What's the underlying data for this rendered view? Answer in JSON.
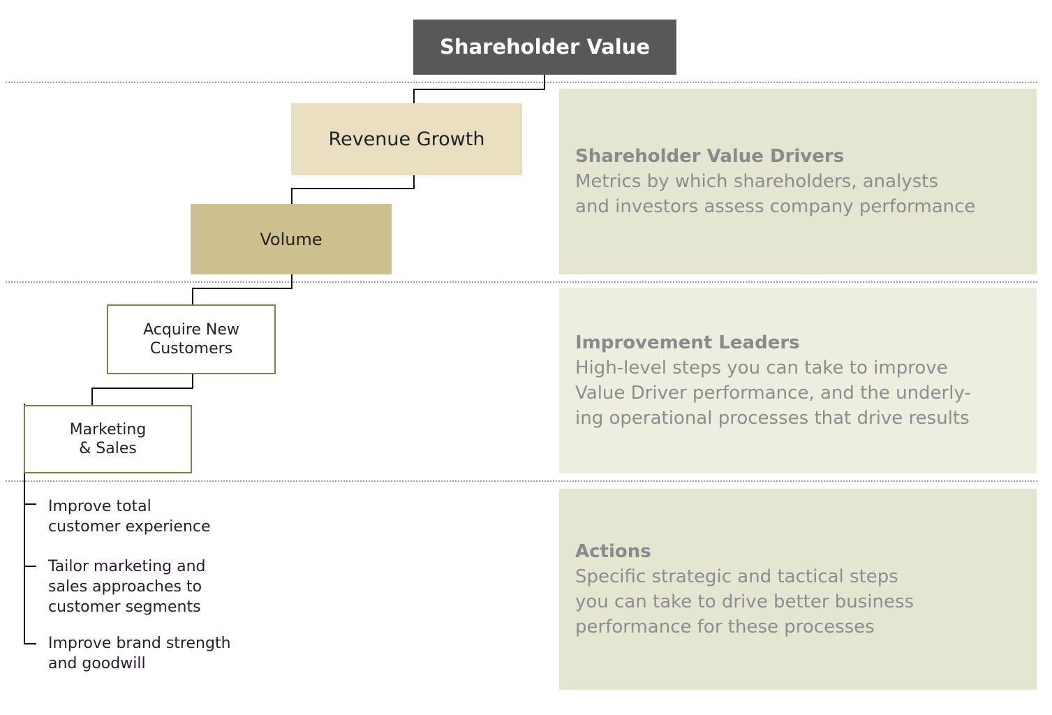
{
  "nodes": {
    "top": "Shareholder Value",
    "revenue": "Revenue Growth",
    "volume": "Volume",
    "acquire": [
      "Acquire New",
      "Customers"
    ],
    "marketing": [
      "Marketing",
      "& Sales"
    ]
  },
  "actions": [
    [
      "Improve total",
      "customer experience"
    ],
    [
      "Tailor marketing and",
      "sales approaches to",
      "customer segments"
    ],
    [
      "Improve brand strength",
      "and goodwill"
    ]
  ],
  "panels": {
    "drivers": {
      "title": "Shareholder Value Drivers",
      "lines": [
        "Metrics by which shareholders, analysts",
        "and investors assess company performance"
      ]
    },
    "leaders": {
      "title": "Improvement Leaders",
      "lines": [
        "High-level steps you can take to improve",
        "Value Driver performance, and the underly-",
        "ing operational processes that drive results"
      ]
    },
    "actions": {
      "title": "Actions",
      "lines": [
        "Specific strategic and tactical steps",
        "you can take to drive better business",
        "performance for these processes"
      ]
    }
  },
  "colors": {
    "top_node": "#5a5757",
    "revenue_node": "#e7dfc0",
    "volume_node": "#cebf8f",
    "outline_node": "#8c7b3c",
    "panel_a": "#e4e6d2",
    "panel_b": "#edeee0"
  }
}
